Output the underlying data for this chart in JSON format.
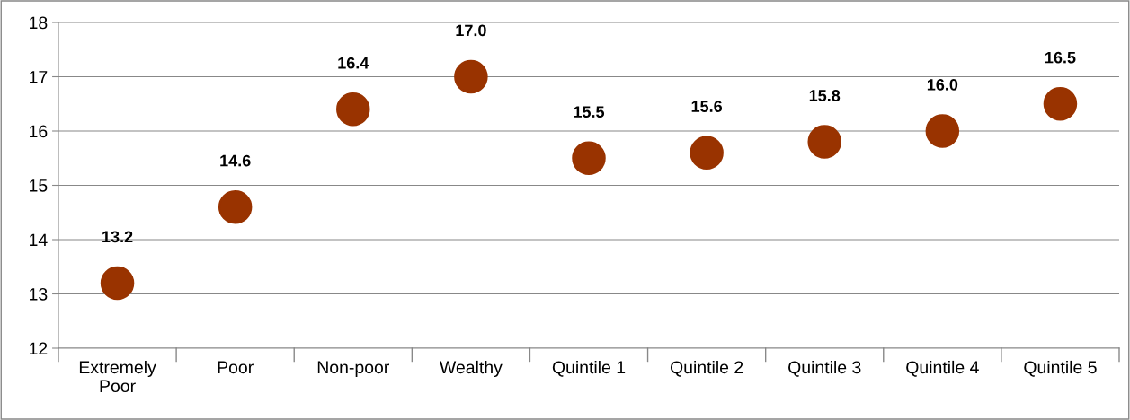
{
  "chart_data": {
    "type": "scatter",
    "categories": [
      "Extremely\nPoor",
      "Poor",
      "Non-poor",
      "Wealthy",
      "Quintile 1",
      "Quintile 2",
      "Quintile 3",
      "Quintile 4",
      "Quintile 5"
    ],
    "series": [
      {
        "color": "#993300",
        "values": [
          13.2,
          14.6,
          16.4,
          17.0,
          15.5,
          15.6,
          15.8,
          16.0,
          16.5
        ],
        "value_labels": [
          "13.2",
          "14.6",
          "16.4",
          "17.0",
          "15.5",
          "15.6",
          "15.8",
          "16.0",
          "16.5"
        ]
      }
    ],
    "ylim": [
      12,
      18
    ],
    "yticks": [
      12,
      13,
      14,
      15,
      16,
      17,
      18
    ],
    "grid": "y",
    "marker": "circle",
    "legend": false
  }
}
